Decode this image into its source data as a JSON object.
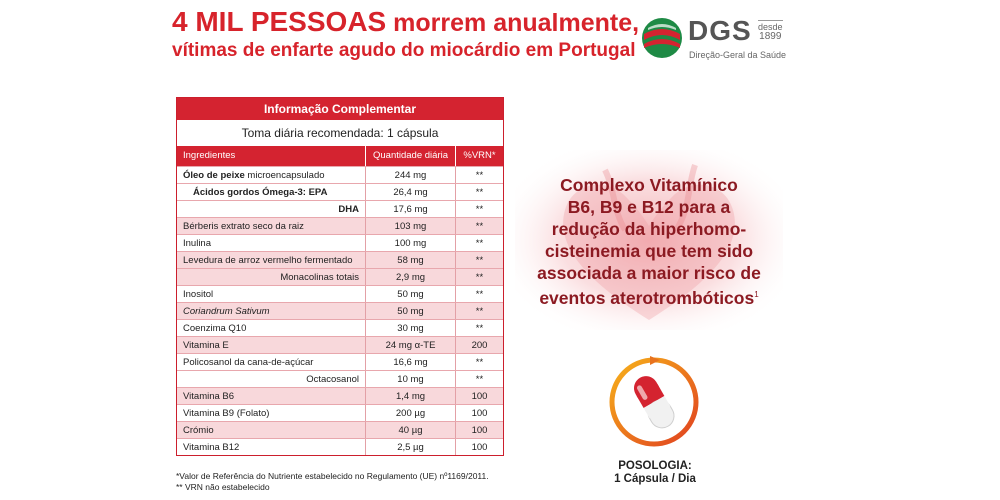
{
  "headline": {
    "line1_big": "4 MIL PESSOAS",
    "line1_rest": " morrem anualmente,",
    "line2": "vítimas de enfarte agudo do miocárdio em Portugal"
  },
  "logo": {
    "name": "DGS",
    "since_label": "desde",
    "since_year": "1899",
    "full_name": "Direção-Geral da Saúde"
  },
  "table": {
    "title": "Informação Complementar",
    "daily_dose": "Toma diária recomendada: 1 cápsula",
    "columns": [
      "Ingredientes",
      "Quantidade diária",
      "%VRN*"
    ],
    "rows": [
      {
        "ingredient": "Óleo de peixe",
        "ingredient_suffix": " microencapsulado",
        "amount": "244 mg",
        "vrn": "**"
      },
      {
        "ingredient": "Ácidos gordos Ómega-3: EPA",
        "ingredient_suffix": "",
        "amount": "26,4 mg",
        "vrn": "**"
      },
      {
        "ingredient": "DHA",
        "ingredient_suffix": "",
        "amount": "17,6 mg",
        "vrn": "**"
      },
      {
        "ingredient": "Bérberis extrato seco da raiz",
        "ingredient_suffix": "",
        "amount": "103 mg",
        "vrn": "**"
      },
      {
        "ingredient": "Inulina",
        "ingredient_suffix": "",
        "amount": "100 mg",
        "vrn": "**"
      },
      {
        "ingredient": "Levedura de arroz vermelho fermentado",
        "ingredient_suffix": "",
        "amount": "58 mg",
        "vrn": "**"
      },
      {
        "ingredient": "Monacolinas totais",
        "ingredient_suffix": "",
        "amount": "2,9 mg",
        "vrn": "**"
      },
      {
        "ingredient": "Inositol",
        "ingredient_suffix": "",
        "amount": "50 mg",
        "vrn": "**"
      },
      {
        "ingredient": "Coriandrum Sativum",
        "ingredient_suffix": "",
        "amount": "50 mg",
        "vrn": "**"
      },
      {
        "ingredient": "Coenzima Q10",
        "ingredient_suffix": "",
        "amount": "30 mg",
        "vrn": "**"
      },
      {
        "ingredient": "Vitamina E",
        "ingredient_suffix": "",
        "amount": "24 mg α-TE",
        "vrn": "200"
      },
      {
        "ingredient": "Policosanol da cana-de-açúcar",
        "ingredient_suffix": "",
        "amount": "16,6 mg",
        "vrn": "**"
      },
      {
        "ingredient": "Octacosanol",
        "ingredient_suffix": "",
        "amount": "10 mg",
        "vrn": "**"
      },
      {
        "ingredient": "Vitamina B6",
        "ingredient_suffix": "",
        "amount": "1,4 mg",
        "vrn": "100"
      },
      {
        "ingredient": "Vitamina B9 (Folato)",
        "ingredient_suffix": "",
        "amount": "200 µg",
        "vrn": "100"
      },
      {
        "ingredient": "Crómio",
        "ingredient_suffix": "",
        "amount": "40 µg",
        "vrn": "100"
      },
      {
        "ingredient": "Vitamina B12",
        "ingredient_suffix": "",
        "amount": "2,5 µg",
        "vrn": "100"
      }
    ]
  },
  "footnotes": {
    "vrn_note": "*Valor de Referência do Nutriente estabelecido no Regulamento (UE) nº1169/2011.",
    "na_note": "** VRN não estabelecido"
  },
  "complex": {
    "line1": "Complexo Vitamínico",
    "line2": "B6, B9 e B12 para a",
    "line3": "redução da hiperhomo-",
    "line4": "cisteinemia que tem sido",
    "line5": "associada a maior risco de",
    "line6": "eventos aterotrombóticos",
    "ref": "1"
  },
  "posologia": {
    "label": "POSOLOGIA:",
    "dose": "1 Cápsula / Dia"
  },
  "colors": {
    "brand_red": "#d42330",
    "dark_red": "#8c1a22",
    "shade": "#f8d8db"
  }
}
